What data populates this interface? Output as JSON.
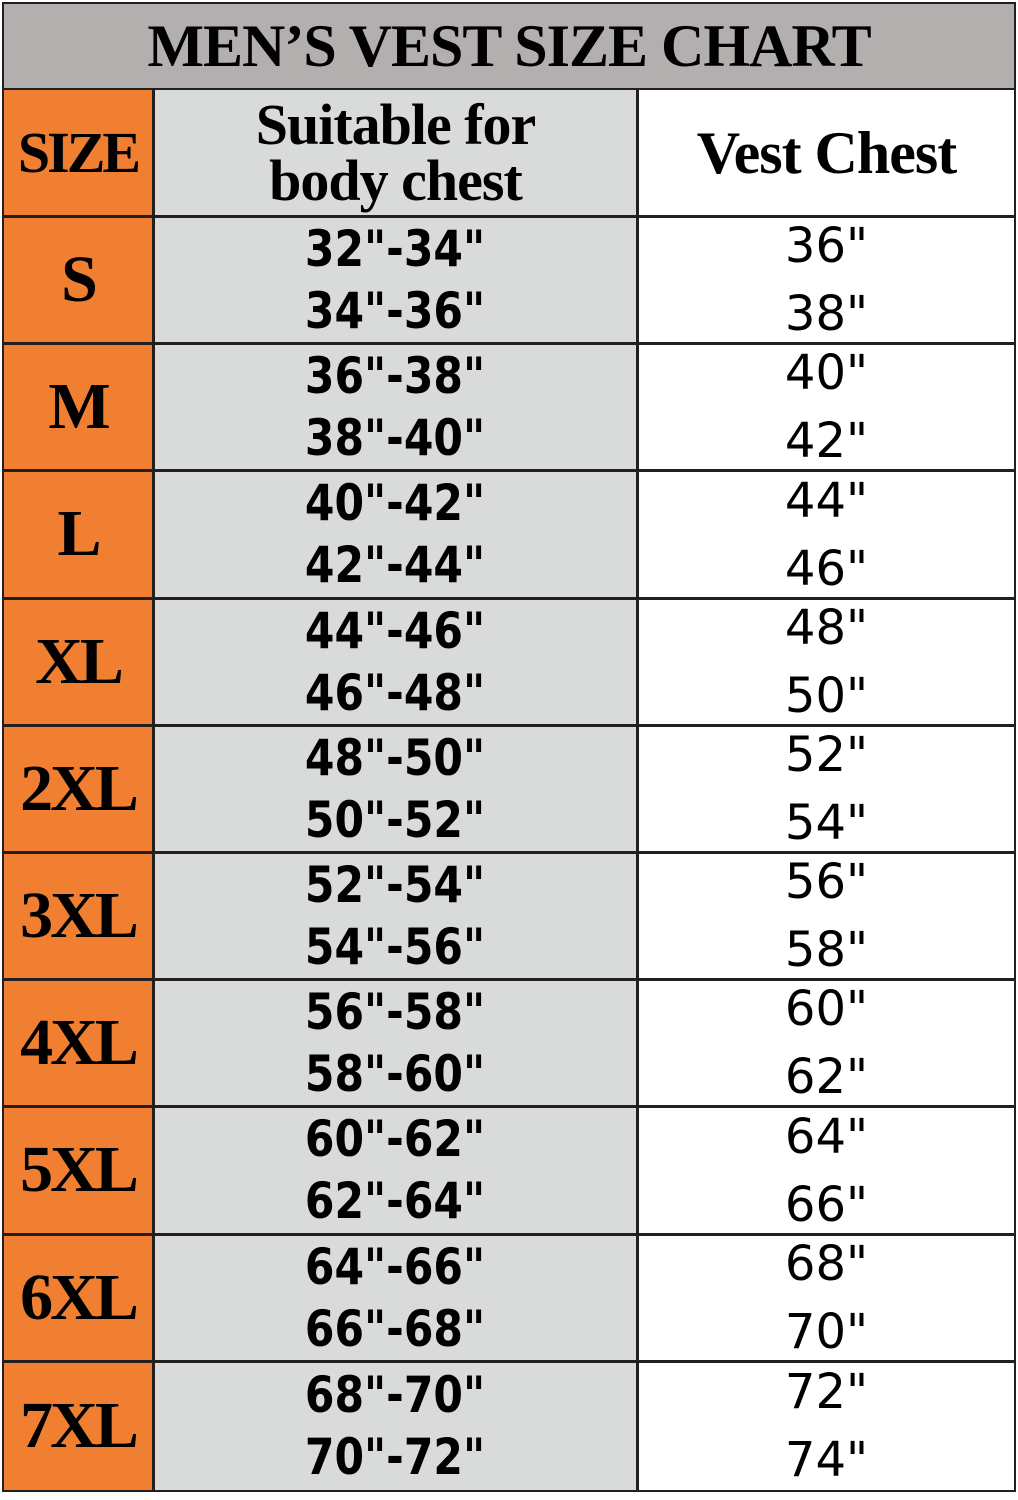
{
  "title": "MEN’S VEST SIZE CHART",
  "headers": {
    "size": "SIZE",
    "body_line1": "Suitable for",
    "body_line2": "body chest",
    "vest": "Vest Chest"
  },
  "colors": {
    "title_bg": "#b3afae",
    "size_bg": "#f07f32",
    "body_bg": "#d9dbda",
    "vest_bg": "#ffffff"
  },
  "rows": [
    {
      "size": "S",
      "body": [
        "32\"-34\"",
        "34\"-36\""
      ],
      "vest": [
        "36\"",
        "38\""
      ]
    },
    {
      "size": "M",
      "body": [
        "36\"-38\"",
        "38\"-40\""
      ],
      "vest": [
        "40\"",
        "42\""
      ]
    },
    {
      "size": "L",
      "body": [
        "40\"-42\"",
        "42\"-44\""
      ],
      "vest": [
        "44\"",
        "46\""
      ]
    },
    {
      "size": "XL",
      "body": [
        "44\"-46\"",
        "46\"-48\""
      ],
      "vest": [
        "48\"",
        "50\""
      ]
    },
    {
      "size": "2XL",
      "body": [
        "48\"-50\"",
        "50\"-52\""
      ],
      "vest": [
        "52\"",
        "54\""
      ]
    },
    {
      "size": "3XL",
      "body": [
        "52\"-54\"",
        "54\"-56\""
      ],
      "vest": [
        "56\"",
        "58\""
      ]
    },
    {
      "size": "4XL",
      "body": [
        "56\"-58\"",
        "58\"-60\""
      ],
      "vest": [
        "60\"",
        "62\""
      ]
    },
    {
      "size": "5XL",
      "body": [
        "60\"-62\"",
        "62\"-64\""
      ],
      "vest": [
        "64\"",
        "66\""
      ]
    },
    {
      "size": "6XL",
      "body": [
        "64\"-66\"",
        "66\"-68\""
      ],
      "vest": [
        "68\"",
        "70\""
      ]
    },
    {
      "size": "7XL",
      "body": [
        "68\"-70\"",
        "70\"-72\""
      ],
      "vest": [
        "72\"",
        "74\""
      ]
    }
  ]
}
